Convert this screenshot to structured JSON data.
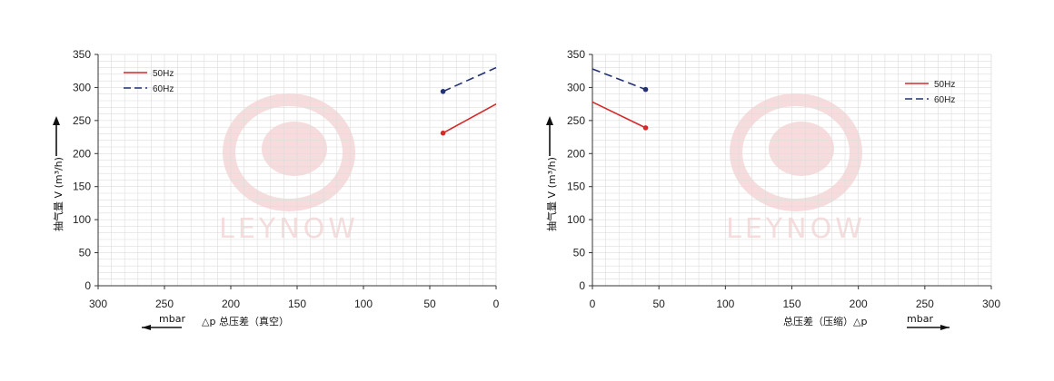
{
  "colors": {
    "s50": "#d42a2a",
    "s60": "#233272",
    "grid": "#dddddd",
    "axis": "#333333",
    "watermark": "#f6dcdc"
  },
  "watermark": {
    "text": "LEYNOW"
  },
  "chart_data": [
    {
      "type": "line",
      "title": "",
      "ylabel": "抽气量 V (m³/h)",
      "xlabel": "△p  总压差（真空）",
      "unit_label": "mbar",
      "x_direction": "reversed",
      "xlim": [
        300,
        0
      ],
      "ylim": [
        0,
        350
      ],
      "x_ticks": [
        "300",
        "250",
        "200",
        "150",
        "100",
        "50",
        "0"
      ],
      "y_ticks": [
        "0",
        "50",
        "100",
        "150",
        "200",
        "250",
        "300",
        "350"
      ],
      "grid": true,
      "legend_position": "top-left",
      "series": [
        {
          "name": "50Hz",
          "style": "solid",
          "color": "#d42a2a",
          "points": [
            [
              40,
              231
            ],
            [
              0,
              275
            ]
          ],
          "marker_x": 40
        },
        {
          "name": "60Hz",
          "style": "dashed",
          "color": "#233272",
          "points": [
            [
              40,
              294
            ],
            [
              0,
              330
            ]
          ],
          "marker_x": 40
        }
      ]
    },
    {
      "type": "line",
      "title": "",
      "ylabel": "抽气量 V (m³/h)",
      "xlabel": "总压差（压缩）△p",
      "unit_label": "mbar",
      "x_direction": "normal",
      "xlim": [
        0,
        300
      ],
      "ylim": [
        0,
        350
      ],
      "x_ticks": [
        "0",
        "50",
        "100",
        "150",
        "200",
        "250",
        "300"
      ],
      "y_ticks": [
        "0",
        "50",
        "100",
        "150",
        "200",
        "250",
        "300",
        "350"
      ],
      "grid": true,
      "legend_position": "top-right",
      "series": [
        {
          "name": "50Hz",
          "style": "solid",
          "color": "#d42a2a",
          "points": [
            [
              0,
              278
            ],
            [
              40,
              239
            ]
          ],
          "marker_x": 40
        },
        {
          "name": "60Hz",
          "style": "dashed",
          "color": "#233272",
          "points": [
            [
              0,
              328
            ],
            [
              40,
              297
            ]
          ],
          "marker_x": 40
        }
      ]
    }
  ]
}
